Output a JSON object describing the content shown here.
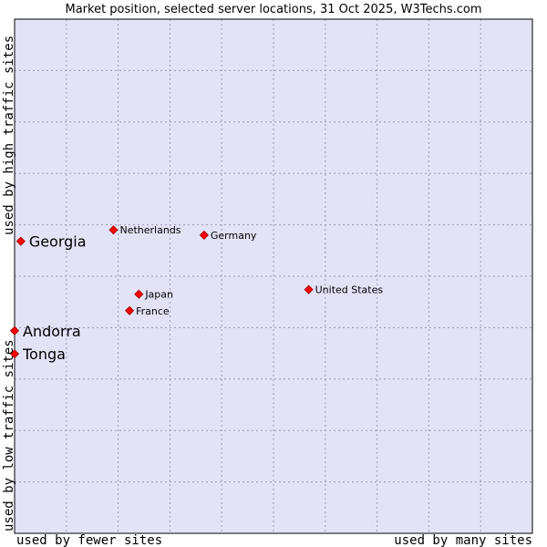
{
  "chart_data": {
    "type": "scatter",
    "title": "Market position, selected server locations, 31 Oct 2025, W3Techs.com",
    "xlabel_low": "used by fewer sites",
    "xlabel_high": "used by many sites",
    "ylabel_low": "used by low traffic sites",
    "ylabel_high": "used by high traffic sites",
    "xlim": [
      0,
      100
    ],
    "ylim": [
      0,
      100
    ],
    "grid": true,
    "colors": {
      "plot_background": "#e3e3f7",
      "grid": "#9a9ab8",
      "border": "#000000",
      "marker": "#ff0000",
      "marker_edge": "#990000"
    },
    "points": [
      {
        "name": "Netherlands",
        "x": 19.1,
        "y": 59.0,
        "emphasis": "small"
      },
      {
        "name": "Germany",
        "x": 36.6,
        "y": 58.0,
        "emphasis": "small"
      },
      {
        "name": "Georgia",
        "x": 1.2,
        "y": 56.8,
        "emphasis": "large"
      },
      {
        "name": "United States",
        "x": 56.8,
        "y": 47.4,
        "emphasis": "small"
      },
      {
        "name": "Japan",
        "x": 24.0,
        "y": 46.5,
        "emphasis": "small"
      },
      {
        "name": "France",
        "x": 22.2,
        "y": 43.3,
        "emphasis": "small"
      },
      {
        "name": "Andorra",
        "x": 0.0,
        "y": 39.4,
        "emphasis": "large"
      },
      {
        "name": "Tonga",
        "x": 0.0,
        "y": 34.9,
        "emphasis": "large"
      }
    ]
  }
}
